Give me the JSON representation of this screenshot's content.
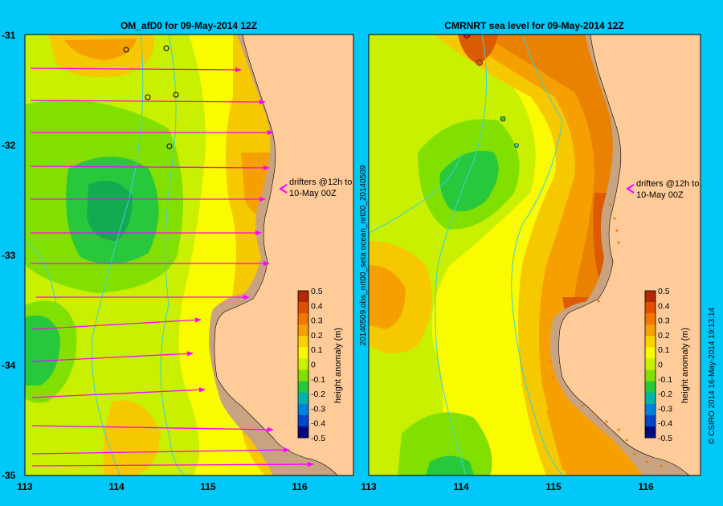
{
  "left_panel": {
    "title": "OM_afD0 for 09-May-2014 12Z",
    "y_ticks": [
      "-31",
      "-32",
      "-33",
      "-34",
      "-35"
    ],
    "x_ticks": [
      "113",
      "114",
      "115",
      "116"
    ],
    "annotation_line1": "drifters @12h to",
    "annotation_line2": "10-May 00Z",
    "colorbar_label": "height anomaly (m)"
  },
  "right_panel": {
    "title": "CMRNRT sea level  for 09-May-2014 12Z",
    "x_ticks": [
      "113",
      "114",
      "115",
      "116"
    ],
    "side_label": "20140509.obs_nrt00_seta     ocean_nrt00_20140509",
    "annotation_line1": "drifters @12h to",
    "annotation_line2": "10-May 00Z",
    "colorbar_label": "height anomaly (m)"
  },
  "colorbar_ticks": [
    "0.5",
    "0.4",
    "0.3",
    "0.2",
    "0.1",
    "0",
    "-0.1",
    "-0.2",
    "-0.3",
    "-0.4",
    "-0.5"
  ],
  "colorbar_colors": [
    "#b42800",
    "#e05000",
    "#f07800",
    "#f5a000",
    "#fad200",
    "#fafa00",
    "#c8f000",
    "#82e000",
    "#28c83c",
    "#00b4aa",
    "#0082dc",
    "#0046c8",
    "#000a80"
  ],
  "credit": "© CSIRO 2014   16-May-2014 19:13:14",
  "colors": {
    "background": "#00c8f8",
    "land": "#ffcc99",
    "shelf": "#c8a382",
    "coast_line": "#000000",
    "bathymetry": "#37d2dc",
    "arrow": "#ff00ff",
    "yellow": "#fafa00",
    "yellow_green": "#c8f000",
    "light_green": "#82e000",
    "green": "#28c83c",
    "dark_green": "#14aa50",
    "orange_light": "#f5c800",
    "orange": "#f5a000",
    "orange_dark": "#e88200",
    "red_orange": "#dc5a00"
  },
  "map_extent": {
    "lon": [
      113,
      116.6
    ],
    "lat": [
      -35,
      -31
    ]
  }
}
